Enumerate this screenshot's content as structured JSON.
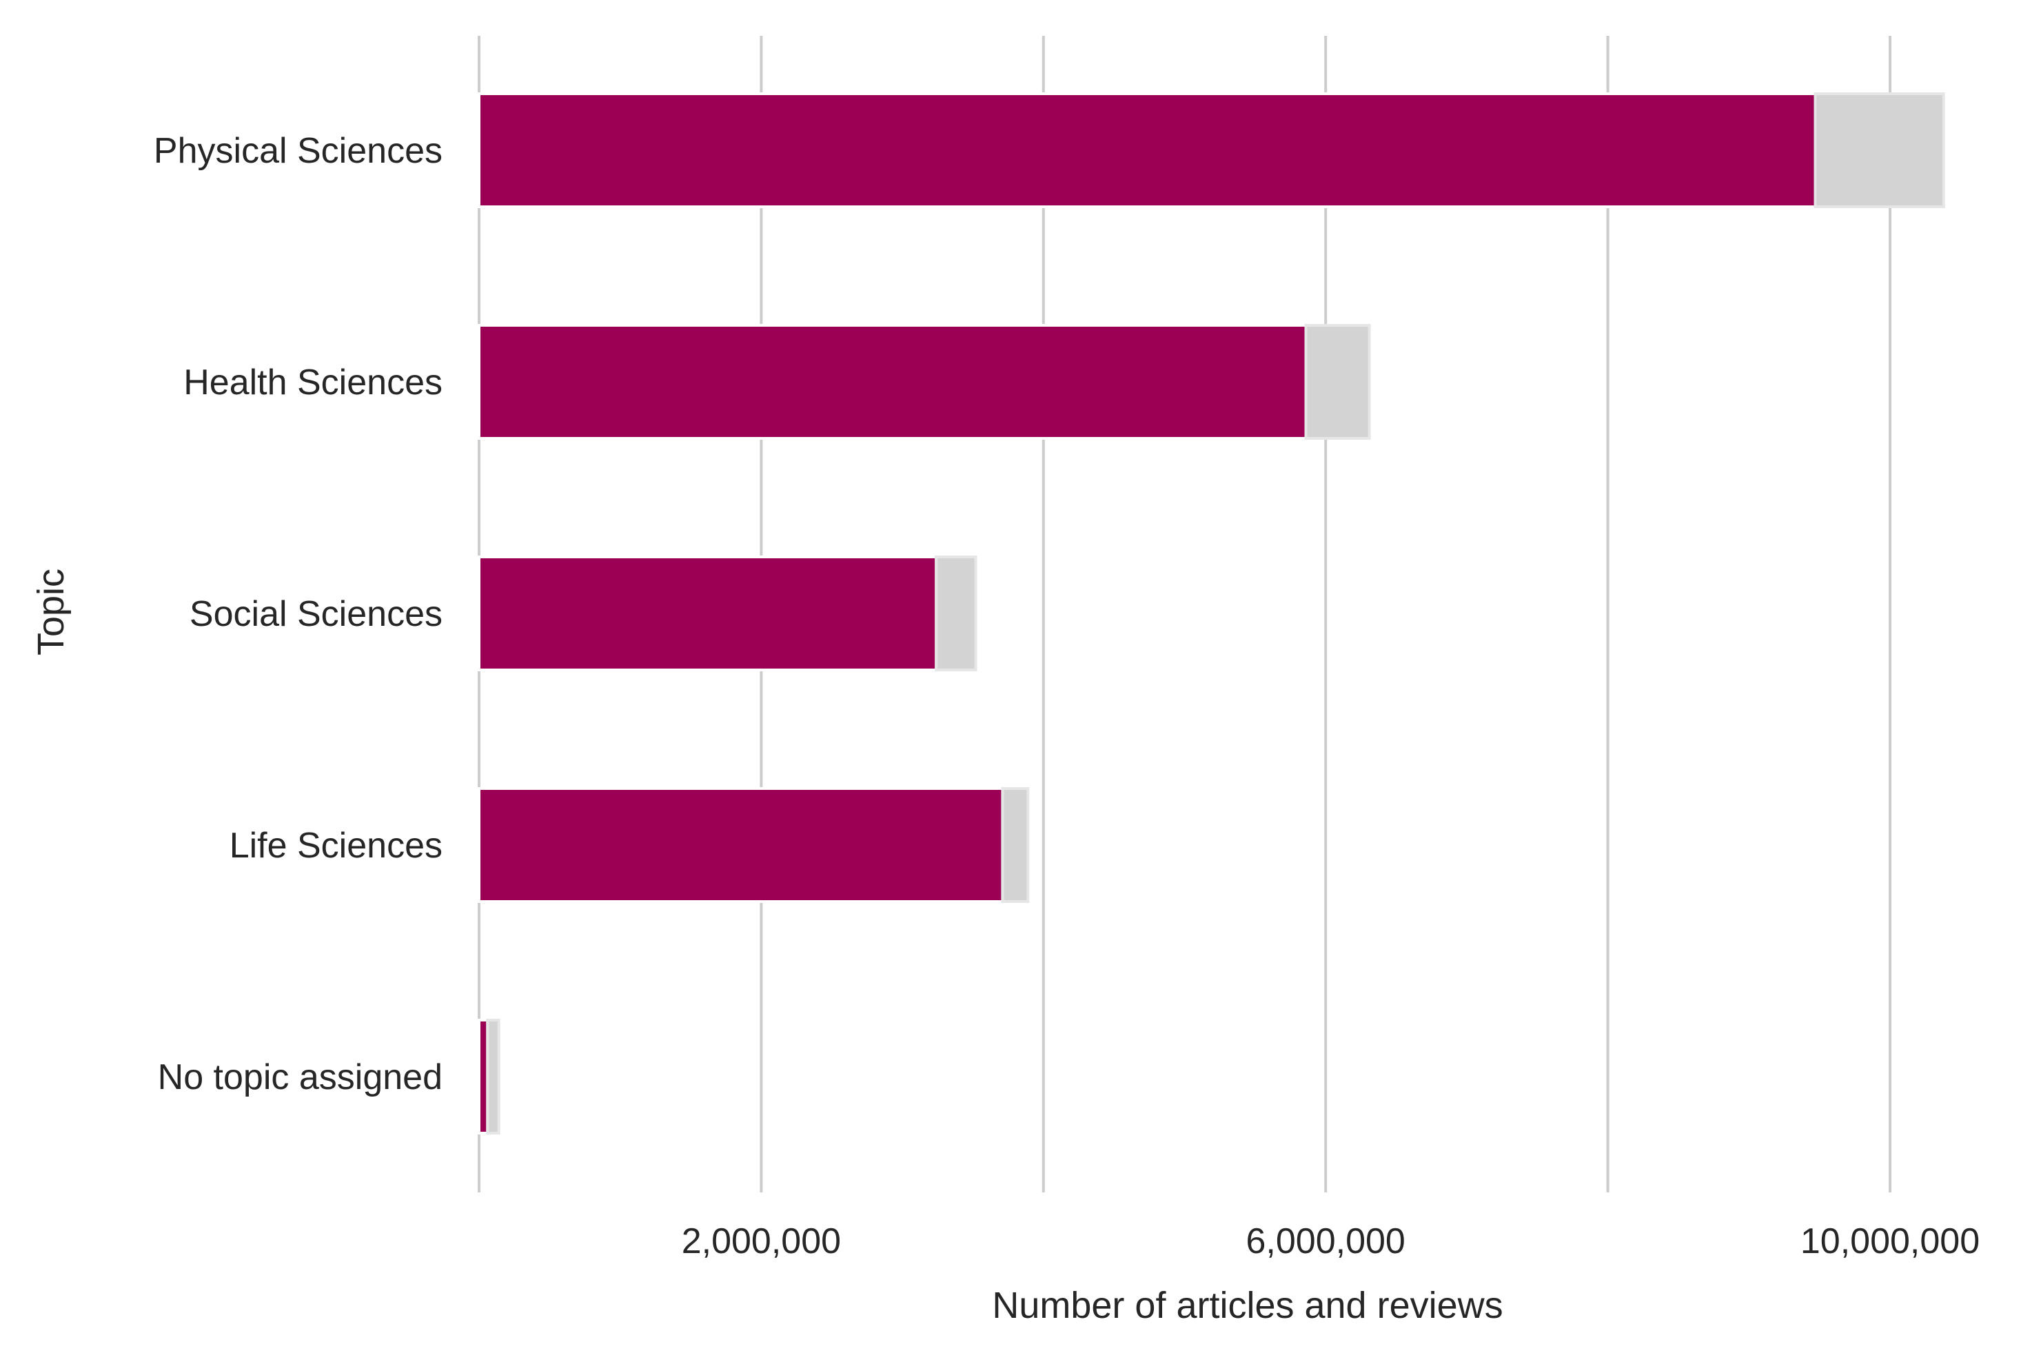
{
  "chart_data": {
    "type": "bar",
    "orientation": "horizontal",
    "stacked": true,
    "xlabel": "Number of articles and reviews",
    "ylabel": "Topic",
    "xlim": [
      0,
      10700000
    ],
    "xticks": [
      0,
      2000000,
      4000000,
      6000000,
      8000000,
      10000000
    ],
    "xtick_labels": [
      "2,000,000",
      "6,000,000",
      "10,000,000"
    ],
    "xtick_label_values": [
      2000000,
      6000000,
      10000000
    ],
    "grid": "vertical",
    "legend": "none",
    "categories": [
      "Physical Sciences",
      "Health Sciences",
      "Social Sciences",
      "Life Sciences",
      "No topic assigned"
    ],
    "series": [
      {
        "color": "#9b0055",
        "values": [
          9470000,
          5860000,
          3240000,
          3710000,
          60000
        ]
      },
      {
        "color": "#d3d3d3",
        "values": [
          910000,
          450000,
          280000,
          180000,
          80000
        ]
      }
    ]
  }
}
